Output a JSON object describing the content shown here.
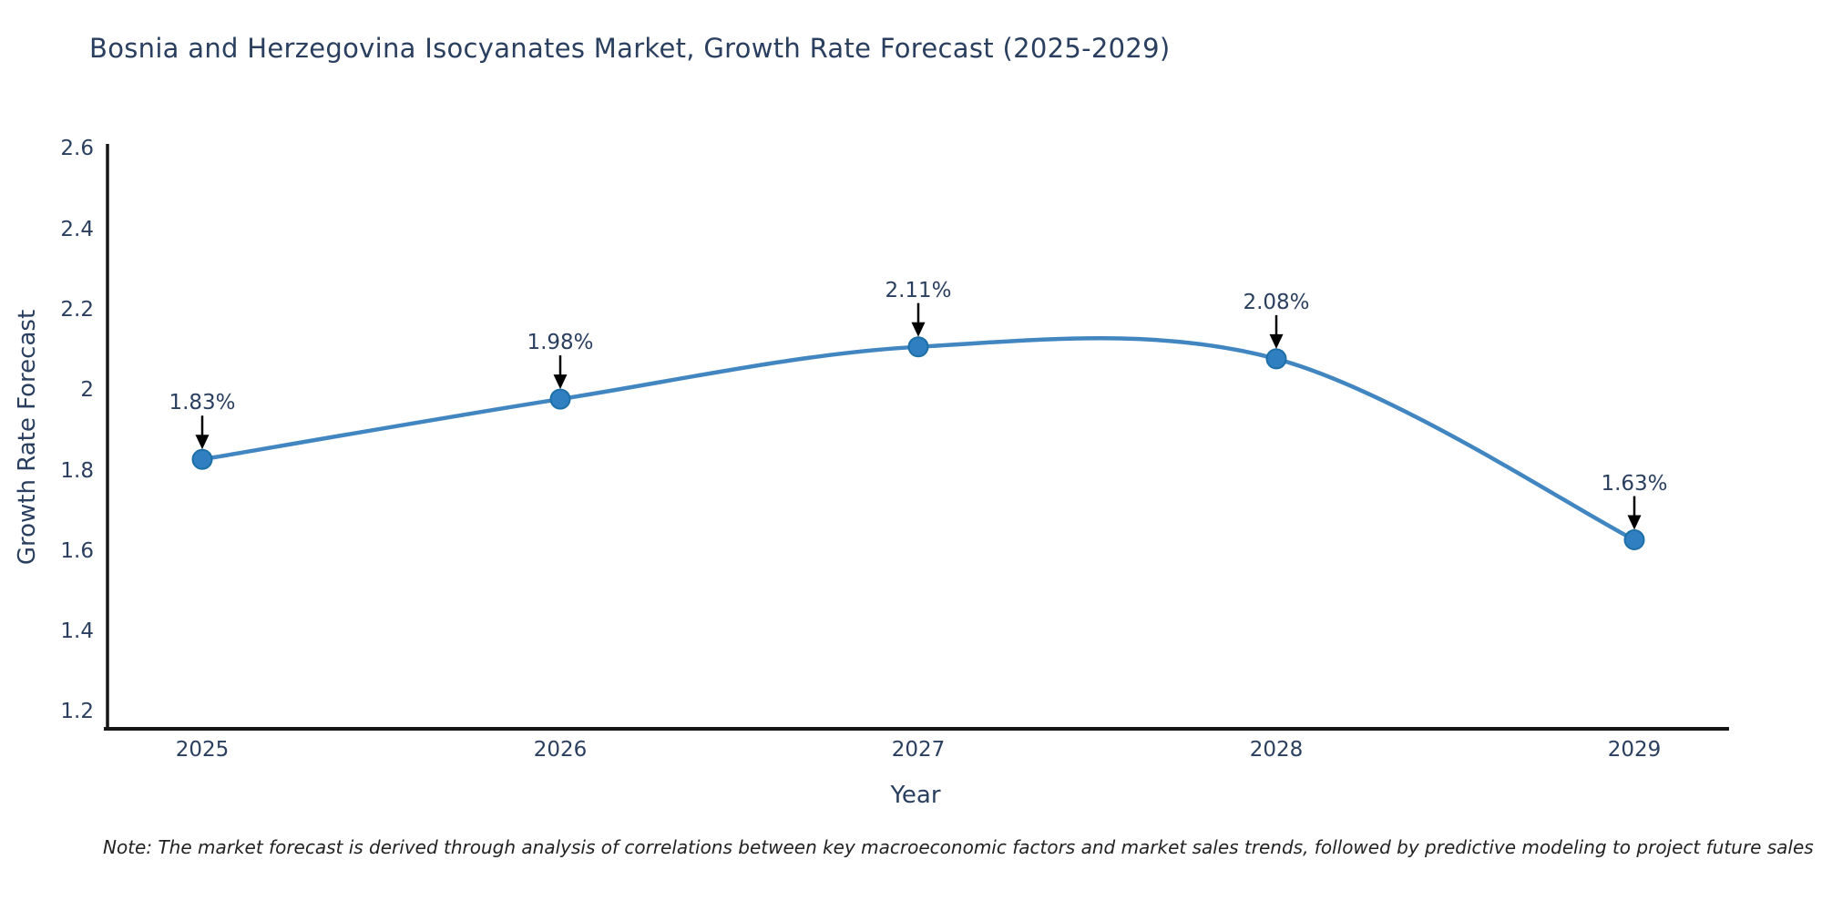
{
  "title": "Bosnia and Herzegovina Isocyanates Market, Growth Rate Forecast (2025-2029)",
  "note": "Note: The market forecast is derived through analysis of correlations between key macroeconomic factors and market sales trends, followed by predictive modeling to project future sales",
  "chart_data": {
    "type": "line",
    "title": "Bosnia and Herzegovina Isocyanates Market, Growth Rate Forecast (2025-2029)",
    "xlabel": "Year",
    "ylabel": "Growth Rate Forecast",
    "x": [
      2025,
      2026,
      2027,
      2028,
      2029
    ],
    "series": [
      {
        "name": "Growth Rate Forecast",
        "values": [
          1.83,
          1.98,
          2.11,
          2.08,
          1.63
        ],
        "point_labels": [
          "1.83%",
          "1.98%",
          "2.11%",
          "2.08%",
          "1.63%"
        ]
      }
    ],
    "xtick_labels": [
      "2025",
      "2026",
      "2027",
      "2028",
      "2029"
    ],
    "yticks": [
      2.6,
      2.4,
      2.2,
      2.0,
      1.8,
      1.6,
      1.4,
      1.2
    ],
    "ytick_labels": [
      "2.6",
      "2.4",
      "2.2",
      "2",
      "1.8",
      "1.6",
      "1.4",
      "1.2"
    ],
    "ylim": [
      1.16,
      2.61
    ],
    "line_shape": "spline",
    "grid": false,
    "legend": false,
    "colors": {
      "line": "#4186c0",
      "marker": "#2f7fc1",
      "marker_edge": "#1d6fa8",
      "axis": "#151515",
      "text": "#2a3f5f",
      "annotation_arrow": "#000000"
    }
  }
}
